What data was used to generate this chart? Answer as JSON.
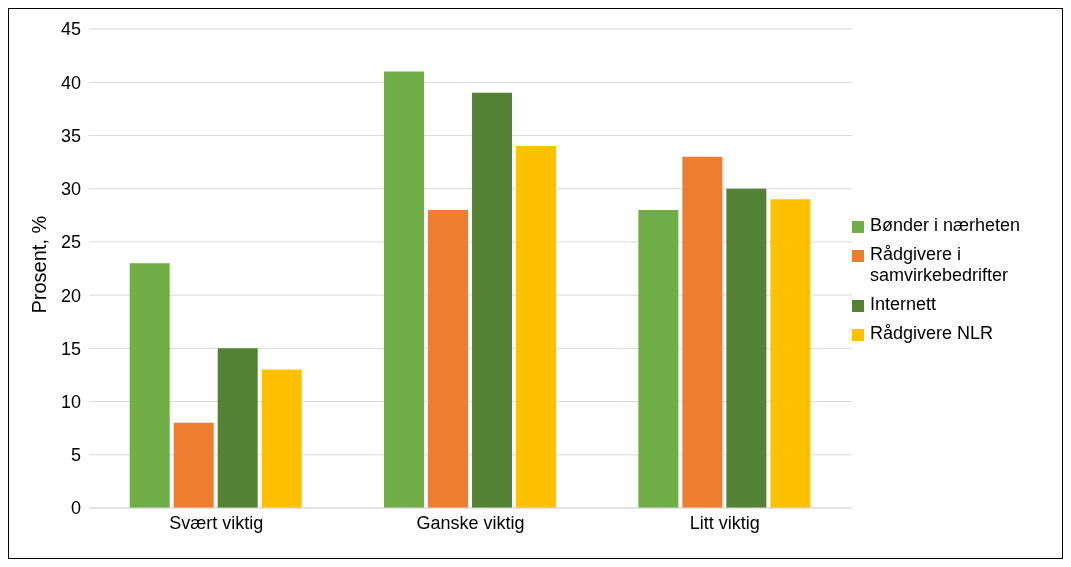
{
  "chart_data": {
    "type": "bar",
    "ylabel": "Prosent, %",
    "categories": [
      "Svært viktig",
      "Ganske viktig",
      "Litt viktig"
    ],
    "series": [
      {
        "name": "Bønder i nærheten",
        "color": "#70ad47",
        "values": [
          23,
          41,
          28
        ]
      },
      {
        "name": "Rådgivere i samvirkebedrifter",
        "color": "#ed7d31",
        "values": [
          8,
          28,
          33
        ]
      },
      {
        "name": "Internett",
        "color": "#548235",
        "values": [
          15,
          39,
          30
        ]
      },
      {
        "name": "Rådgivere NLR",
        "color": "#ffc000",
        "values": [
          13,
          34,
          29
        ]
      }
    ],
    "ylim": [
      0,
      45
    ],
    "yticks": [
      0,
      5,
      10,
      15,
      20,
      25,
      30,
      35,
      40,
      45
    ],
    "grid": "y",
    "legend": "right"
  }
}
